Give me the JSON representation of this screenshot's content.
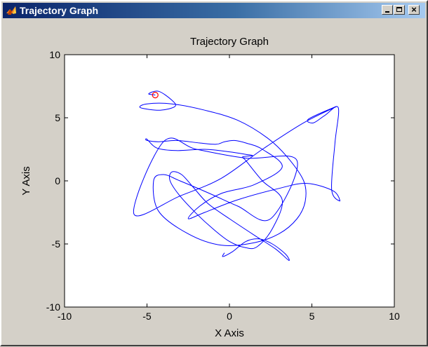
{
  "window": {
    "title": "Trajectory Graph",
    "icon": "matlab-figure-icon",
    "controls": {
      "minimize": "minimize",
      "maximize": "maximize",
      "close": "×"
    }
  },
  "colors": {
    "titlebar_start": "#0a246a",
    "titlebar_end": "#a6caf0",
    "figure_bg": "#d4d0c8",
    "axes_bg": "#ffffff",
    "trajectory": "#0000ff",
    "marker": "#ff0000"
  },
  "chart_data": {
    "type": "line",
    "title": "Trajectory Graph",
    "xlabel": "X Axis",
    "ylabel": "Y Axis",
    "xlim": [
      -10,
      10
    ],
    "ylim": [
      -10,
      10
    ],
    "xticks": [
      -10,
      -5,
      0,
      5,
      10
    ],
    "yticks": [
      -10,
      -5,
      0,
      5,
      10
    ],
    "grid": false,
    "series": [
      {
        "color": "#0000ff",
        "x": [
          -4.5,
          -4.9,
          -4.3,
          -3.5,
          -3.3,
          -4.2,
          -5.4,
          -5.0,
          -3.5,
          -1.5,
          0.5,
          2.3,
          3.5,
          4.5,
          4.6,
          4.1,
          3.0,
          1.5,
          -0.5,
          -2.5,
          -4.3,
          -4.6,
          -4.0,
          -3.0,
          -1.2,
          0.5,
          2.5,
          4.1,
          1.0,
          -2.0,
          -4.0,
          -5.8,
          -3.0,
          -0.5,
          2.0,
          4.5,
          6.5,
          4.8,
          5.1,
          5.8,
          6.6,
          6.4,
          6.2,
          6.7,
          6.3,
          4.7,
          3.0,
          0.5,
          -1.5,
          -2.5,
          -1.8,
          -0.5,
          1.5,
          3.2,
          2.0,
          1.0,
          0.3,
          -0.3,
          -0.8,
          -1.8,
          -3.2,
          -4.3,
          -5.0,
          -5.0,
          -4.4,
          -3.2,
          -1.5,
          0.0,
          1.0,
          1.4,
          0.8,
          1.0,
          2.0,
          3.2,
          2.6,
          1.7,
          1.0,
          0.0,
          -1.0,
          -2.0,
          -3.0,
          -3.6,
          -3.5,
          -2.9,
          -2.2,
          -1.3,
          0.0,
          1.5,
          2.8,
          3.6,
          3.4,
          2.6,
          1.8,
          1.0,
          0.2,
          -0.4,
          -0.3
        ],
        "y": [
          6.8,
          6.9,
          7.1,
          6.4,
          5.9,
          5.6,
          5.8,
          6.1,
          6.1,
          5.6,
          4.8,
          3.4,
          1.9,
          0.0,
          -1.6,
          -3.0,
          -4.2,
          -4.9,
          -5.1,
          -4.2,
          -2.4,
          0.0,
          0.5,
          0.0,
          -1.0,
          -2.0,
          -3.0,
          1.6,
          1.8,
          2.5,
          3.1,
          -2.6,
          -1.2,
          0.2,
          2.5,
          4.6,
          5.9,
          4.9,
          4.6,
          5.2,
          5.8,
          3.0,
          -0.7,
          -1.6,
          -0.8,
          -0.2,
          -0.6,
          -1.5,
          -2.5,
          -3.0,
          -2.0,
          -1.0,
          -0.3,
          1.1,
          2.5,
          3.0,
          3.2,
          3.1,
          2.9,
          3.0,
          3.2,
          3.1,
          3.2,
          3.3,
          2.6,
          2.4,
          2.5,
          2.3,
          2.1,
          2.0,
          1.9,
          1.6,
          0.0,
          -1.5,
          -3.8,
          -5.2,
          -5.3,
          -4.8,
          -3.8,
          -2.6,
          -1.2,
          0.0,
          0.7,
          0.5,
          -0.5,
          -1.8,
          -3.0,
          -4.3,
          -5.4,
          -6.3,
          -5.8,
          -5.0,
          -4.6,
          -4.8,
          -5.6,
          -6.0,
          -5.7
        ]
      }
    ],
    "marker": {
      "x": -4.5,
      "y": 6.8,
      "style": "circle",
      "color": "#ff0000"
    }
  }
}
